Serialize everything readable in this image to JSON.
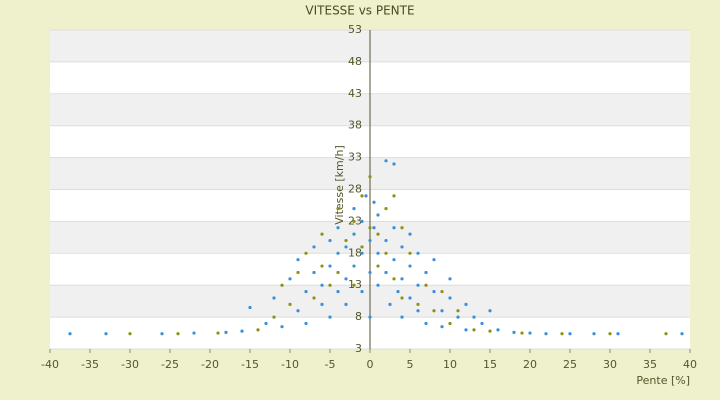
{
  "chart_data": {
    "type": "scatter",
    "title": "VITESSE vs PENTE",
    "x_label": "Pente [%]",
    "y_label": "Vitesse [km/h]",
    "xlim": [
      -40,
      40
    ],
    "xticks": [
      -40,
      -35,
      -30,
      -25,
      -20,
      -15,
      -10,
      -5,
      0,
      5,
      10,
      15,
      20,
      25,
      30,
      35,
      40
    ],
    "ylim": [
      3,
      53
    ],
    "yticks": [
      3,
      8,
      13,
      18,
      23,
      28,
      33,
      38,
      43,
      48,
      53
    ],
    "grid": true,
    "series": [
      {
        "color": "#3a8fd6",
        "x": [
          -37.5,
          -33,
          -26,
          -22,
          -18,
          -16,
          -15,
          -13,
          -12,
          -11,
          -10,
          -9,
          -9,
          -8,
          -8,
          -7,
          -7,
          -6,
          -6,
          -5,
          -5,
          -5,
          -4,
          -4,
          -4,
          -3,
          -3,
          -3,
          -2,
          -2,
          -2,
          -1,
          -1,
          -1,
          -0.5,
          0,
          0,
          0,
          0.5,
          0.5,
          1,
          1,
          1,
          2,
          2,
          2,
          2.5,
          3,
          3,
          3,
          3.5,
          4,
          4,
          4,
          5,
          5,
          5,
          6,
          6,
          6,
          7,
          7,
          8,
          8,
          9,
          9,
          10,
          10,
          11,
          12,
          12,
          13,
          14,
          15,
          16,
          18,
          20,
          22,
          25,
          28,
          31,
          39
        ],
        "values": [
          5.4,
          5.4,
          5.4,
          5.5,
          5.6,
          5.8,
          9.5,
          7,
          11,
          6.5,
          14,
          9,
          17,
          12,
          7,
          15,
          19,
          10,
          13,
          16,
          20,
          8,
          12,
          18,
          22,
          14,
          10,
          19,
          16,
          21,
          25,
          12,
          18,
          23,
          27,
          15,
          20,
          8,
          22,
          26,
          18,
          13,
          24,
          20,
          15,
          32.5,
          10,
          17,
          22,
          32,
          12,
          19,
          14,
          8,
          16,
          11,
          21,
          13,
          9,
          18,
          15,
          7,
          12,
          17,
          9,
          6.5,
          11,
          14,
          8,
          10,
          6,
          8,
          7,
          9,
          6,
          5.6,
          5.5,
          5.4,
          5.4,
          5.4,
          5.4,
          5.4
        ]
      },
      {
        "color": "#8f9014",
        "x": [
          -30,
          -24,
          -19,
          -14,
          -12,
          -11,
          -10,
          -9,
          -8,
          -7,
          -6,
          -6,
          -5,
          -4,
          -4,
          -3,
          -2,
          -2,
          -1,
          -1,
          0,
          0,
          1,
          1,
          2,
          2,
          3,
          3,
          4,
          4,
          5,
          6,
          7,
          8,
          9,
          10,
          11,
          13,
          15,
          19,
          24,
          30,
          37
        ],
        "values": [
          5.4,
          5.4,
          5.5,
          6,
          8,
          13,
          10,
          15,
          18,
          11,
          16,
          21,
          13,
          15,
          25,
          20,
          13,
          23,
          19,
          27,
          22,
          30,
          21,
          16,
          25,
          18,
          14,
          27,
          11,
          22,
          18,
          10,
          13,
          9,
          12,
          7,
          9,
          6,
          5.8,
          5.5,
          5.4,
          5.4,
          5.4
        ]
      }
    ]
  }
}
